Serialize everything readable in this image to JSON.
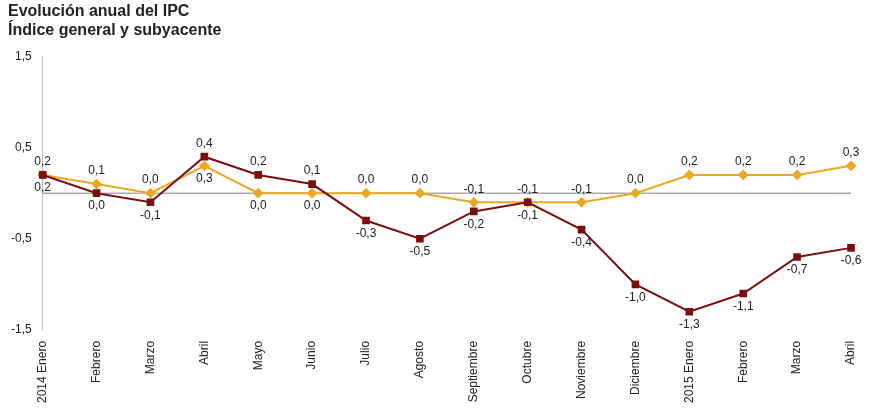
{
  "chart_data": {
    "type": "line",
    "title": "Evolución anual del IPC",
    "subtitle": "Índice general y subyacente",
    "categories": [
      "2014 Enero",
      "Febrero",
      "Marzo",
      "Abril",
      "Mayo",
      "Junio",
      "Julio",
      "Agosto",
      "Septiembre",
      "Octubre",
      "Noviembre",
      "Diciembre",
      "2015 Enero",
      "Febrero",
      "Marzo",
      "Abril"
    ],
    "series": [
      {
        "color": "#7a0f12",
        "marker": "square",
        "values": [
          0.2,
          0.0,
          -0.1,
          0.4,
          0.2,
          0.1,
          -0.3,
          -0.5,
          -0.2,
          -0.1,
          -0.4,
          -1.0,
          -1.3,
          -1.1,
          -0.7,
          -0.6
        ],
        "value_labels": [
          "0,2",
          "0,0",
          "-0,1",
          "0,4",
          "0,2",
          "0,1",
          "-0,3",
          "-0,5",
          "-0,2",
          "-0,1",
          "-0,4",
          "-1,0",
          "-1,3",
          "-1,1",
          "-0,7",
          "-0,6"
        ]
      },
      {
        "color": "#eaa825",
        "marker": "diamond",
        "values": [
          0.2,
          0.1,
          0.0,
          0.3,
          0.0,
          0.0,
          0.0,
          0.0,
          -0.1,
          -0.1,
          -0.1,
          0.0,
          0.2,
          0.2,
          0.2,
          0.3
        ],
        "value_labels": [
          "0,2",
          "0,1",
          "0,0",
          "0,3",
          "0,0",
          "0,0",
          "0,0",
          "0,0",
          "-0,1",
          "-0,1",
          "-0,1",
          "0,0",
          "0,2",
          "0,2",
          "0,2",
          "0,3"
        ]
      }
    ],
    "ylim": [
      -1.5,
      1.5
    ],
    "yticks": [
      {
        "value": -1.5,
        "label": "-1,5"
      },
      {
        "value": -0.5,
        "label": "-0,5"
      },
      {
        "value": 0.5,
        "label": "0,5"
      },
      {
        "value": 1.5,
        "label": "1,5"
      }
    ],
    "grid": false,
    "data_labels": true
  }
}
